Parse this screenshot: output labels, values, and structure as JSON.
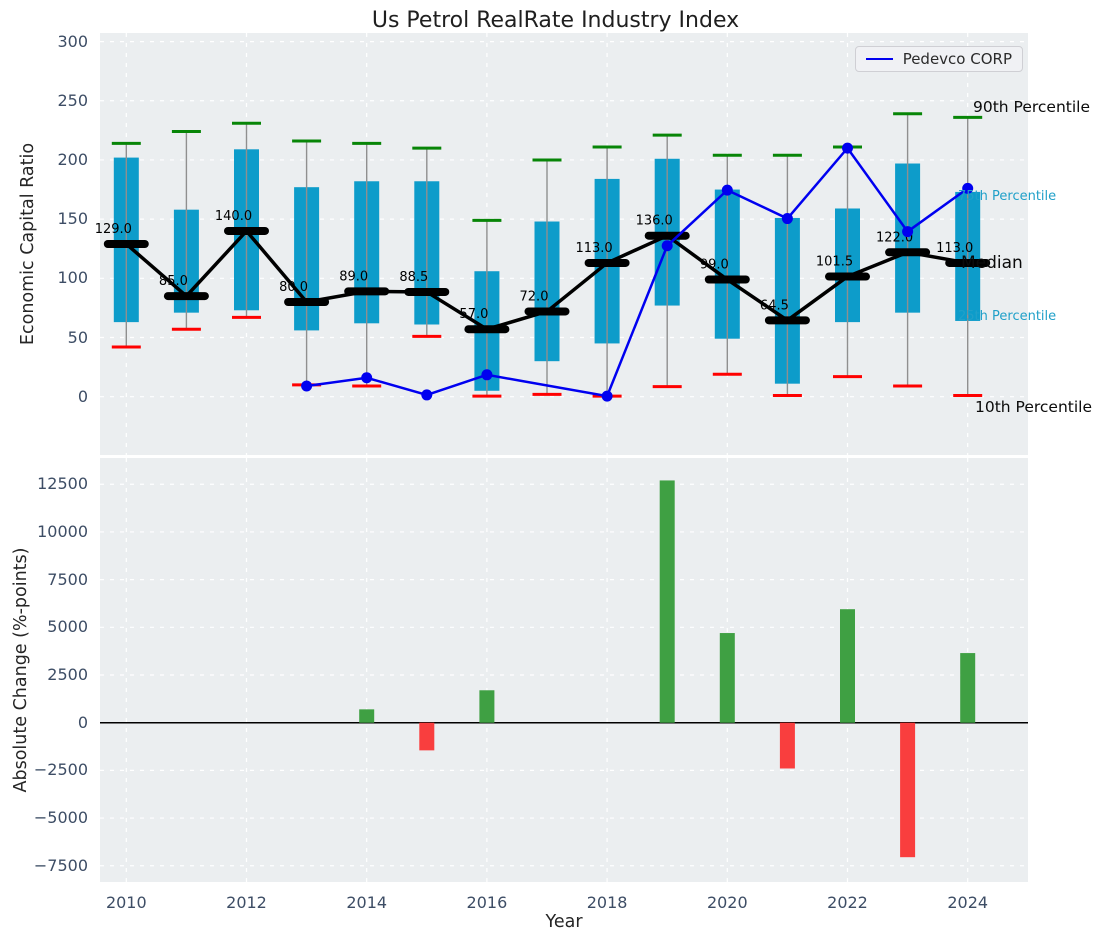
{
  "title": "Us Petrol RealRate Industry Index",
  "legend": {
    "label": "Pedevco CORP"
  },
  "annotations": {
    "p90": "90th Percentile",
    "p75": "75th Percentile",
    "median": "Median",
    "p25": "25th Percentile",
    "p10": "10th Percentile"
  },
  "colors": {
    "plot_bg": "#ebeef0",
    "grid": "#ffffff",
    "box": "#0d9cca",
    "whisker": "#8f8f8f",
    "cap_high": "#078507",
    "cap_low": "#ff0000",
    "median": "#000000",
    "line": "#0000f0",
    "bar_positive": "#3fa043",
    "bar_negative": "#f93e3e",
    "tick_text": "#3d4d65",
    "zero_line": "#000000"
  },
  "chart_data": [
    {
      "type": "boxplot",
      "title": "Us Petrol RealRate Industry Index",
      "ylabel": "Economic Capital Ratio",
      "grid": true,
      "legend_position": "upper right",
      "ylim": [
        -50,
        307
      ],
      "yticks": [
        0,
        50,
        100,
        150,
        200,
        250,
        300
      ],
      "ytick_labels": [
        "0",
        "50",
        "100",
        "150",
        "200",
        "250",
        "300"
      ],
      "xtick_years": [
        2010,
        2012,
        2014,
        2016,
        2018,
        2020,
        2022,
        2024
      ],
      "years": [
        2010,
        2011,
        2012,
        2013,
        2014,
        2015,
        2016,
        2017,
        2018,
        2019,
        2020,
        2021,
        2022,
        2023,
        2024
      ],
      "p10": [
        42,
        57,
        67,
        10,
        9,
        51,
        0.5,
        2,
        0.5,
        8.5,
        19,
        1,
        17,
        9,
        1
      ],
      "p25": [
        63,
        71,
        73,
        56,
        62,
        61,
        5,
        30,
        45,
        77,
        49,
        11,
        63,
        71,
        64
      ],
      "median": [
        129,
        85,
        140,
        80,
        89,
        88.5,
        57,
        72,
        113,
        136,
        99,
        64.5,
        101.5,
        122,
        113
      ],
      "p75": [
        202,
        158,
        209,
        177,
        182,
        182,
        106,
        148,
        184,
        201,
        175,
        151,
        159,
        197,
        173
      ],
      "p90": [
        214,
        224,
        231,
        216,
        214,
        210,
        149,
        200,
        211,
        221,
        204,
        204,
        211,
        239,
        236
      ],
      "median_labels": [
        "129.0",
        "85.0",
        "140.0",
        "80.0",
        "89.0",
        "88.5",
        "57.0",
        "72.0",
        "113.0",
        "136.0",
        "99.0",
        "64.5",
        "101.5",
        "122.0",
        "113.0"
      ],
      "series": [
        {
          "name": "Pedevco CORP",
          "values": [
            null,
            null,
            null,
            9,
            16,
            1.5,
            18.5,
            null,
            0.5,
            127.5,
            174.5,
            150.5,
            210,
            139.5,
            176
          ]
        }
      ]
    },
    {
      "type": "bar",
      "ylabel": "Absolute Change (%-points)",
      "xlabel": "Year",
      "grid": true,
      "ylim": [
        -8350,
        13880
      ],
      "yticks": [
        -7500,
        -5000,
        -2500,
        0,
        2500,
        5000,
        7500,
        10000,
        12500
      ],
      "ytick_labels": [
        "−7500",
        "−5000",
        "−2500",
        "0",
        "2500",
        "5000",
        "7500",
        "10000",
        "12500"
      ],
      "xtick_years": [
        2010,
        2012,
        2014,
        2016,
        2018,
        2020,
        2022,
        2024
      ],
      "xtick_labels": [
        "2010",
        "2012",
        "2014",
        "2016",
        "2018",
        "2020",
        "2022",
        "2024"
      ],
      "years": [
        2010,
        2011,
        2012,
        2013,
        2014,
        2015,
        2016,
        2017,
        2018,
        2019,
        2020,
        2021,
        2022,
        2023,
        2024
      ],
      "values": [
        null,
        null,
        null,
        null,
        700,
        -1450,
        1700,
        null,
        null,
        12700,
        4700,
        -2400,
        5950,
        -7050,
        3650
      ]
    }
  ]
}
